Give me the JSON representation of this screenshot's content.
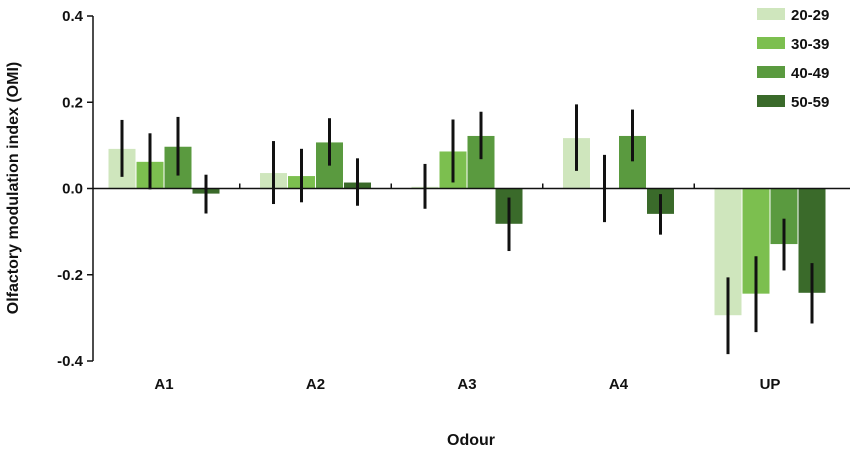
{
  "chart_data": {
    "type": "bar",
    "title": "",
    "xlabel": "Odour",
    "ylabel": "Olfactory modulation index (OMI)",
    "ylim": [
      -0.4,
      0.4
    ],
    "yticks": [
      "0.4",
      "0.2",
      "0.0",
      "-0.2",
      "-0.4"
    ],
    "yticks_values": [
      0.4,
      0.2,
      0.0,
      -0.2,
      -0.4
    ],
    "categories": [
      "A1",
      "A2",
      "A3",
      "A4",
      "UP"
    ],
    "grid": false,
    "legend_position": "top-right",
    "series": [
      {
        "name": "20-29",
        "color": "#cfe6bd",
        "values": [
          0.093,
          0.037,
          0.005,
          0.118,
          -0.295
        ],
        "errors": [
          0.066,
          0.073,
          0.052,
          0.077,
          0.089
        ]
      },
      {
        "name": "30-39",
        "color": "#7cbf4f",
        "values": [
          0.063,
          0.03,
          0.087,
          0.0,
          -0.245
        ],
        "errors": [
          0.065,
          0.062,
          0.073,
          0.078,
          0.088
        ]
      },
      {
        "name": "40-49",
        "color": "#5a9a3f",
        "values": [
          0.098,
          0.108,
          0.123,
          0.123,
          -0.13
        ],
        "errors": [
          0.068,
          0.055,
          0.055,
          0.06,
          0.06
        ]
      },
      {
        "name": "50-59",
        "color": "#3a6a2a",
        "values": [
          -0.013,
          0.015,
          -0.083,
          -0.06,
          -0.243
        ],
        "errors": [
          0.045,
          0.055,
          0.062,
          0.047,
          0.07
        ]
      }
    ]
  }
}
